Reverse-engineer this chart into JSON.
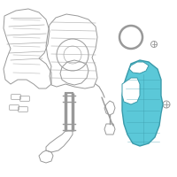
{
  "bg_color": "#ffffff",
  "highlight_color": "#5bc8d8",
  "line_color": "#aaaaaa",
  "dark_line": "#888888",
  "edge_color": "#999999",
  "fig_width": 2.0,
  "fig_height": 2.0,
  "dpi": 100
}
